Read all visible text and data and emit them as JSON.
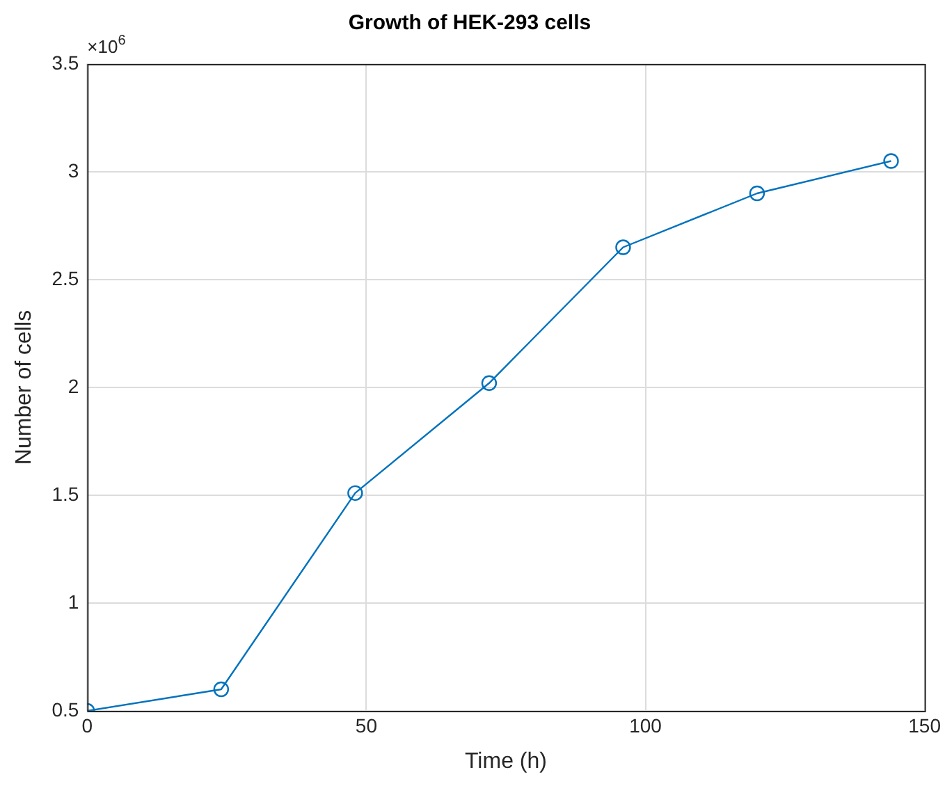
{
  "chart_data": {
    "type": "line",
    "title": "Growth of HEK-293 cells",
    "xlabel": "Time (h)",
    "ylabel": "Number of cells",
    "x": [
      0,
      24,
      48,
      72,
      96,
      120,
      144
    ],
    "series": [
      {
        "color": "#0072bd",
        "values": [
          0.5,
          0.6,
          1.51,
          2.02,
          2.65,
          2.9,
          3.05
        ]
      }
    ],
    "xlim": [
      0,
      150
    ],
    "xticks": [
      0,
      50,
      100,
      150
    ],
    "ylim": [
      0.5,
      3.5
    ],
    "yticks": [
      0.5,
      1,
      1.5,
      2,
      2.5,
      3,
      3.5
    ],
    "annotations": [
      "×10$^{6}$"
    ],
    "grid": true,
    "legend": false,
    "marker": "circle",
    "line_style": "solid"
  }
}
